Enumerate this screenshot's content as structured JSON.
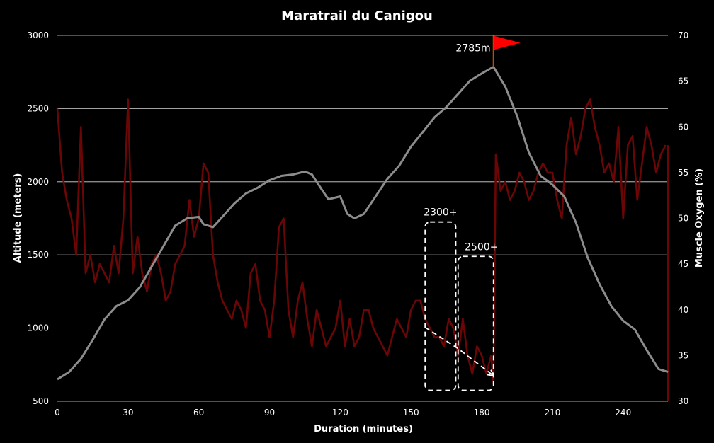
{
  "chart_data": {
    "type": "line",
    "title": "Maratrail du Canigou",
    "xlabel": "Duration (minutes)",
    "ylabel": "Altitude (meters)",
    "y2label": "Muscle Oxygen (%)",
    "xlim": [
      0,
      259
    ],
    "ylim": [
      500,
      3000
    ],
    "y2lim": [
      30,
      70
    ],
    "xticks": [
      0,
      30,
      60,
      90,
      120,
      150,
      180,
      210,
      240
    ],
    "yticks": [
      500,
      1000,
      1500,
      2000,
      2500,
      3000
    ],
    "y2ticks": [
      30,
      35,
      40,
      45,
      50,
      55,
      60,
      65,
      70
    ],
    "grid": "horizontal",
    "colors": {
      "background": "#000000",
      "altitude": "#8c8c8c",
      "oxygen": "#6b0606",
      "flag": "#ff0000",
      "text": "#ffffff"
    },
    "series": [
      {
        "axis": "left",
        "x": [
          0,
          5,
          10,
          15,
          20,
          25,
          30,
          35,
          40,
          45,
          50,
          55,
          60,
          62,
          66,
          70,
          75,
          80,
          85,
          90,
          95,
          100,
          105,
          108,
          112,
          115,
          120,
          123,
          126,
          130,
          135,
          140,
          145,
          150,
          155,
          160,
          165,
          170,
          175,
          180,
          185,
          190,
          195,
          200,
          205,
          210,
          215,
          220,
          225,
          230,
          235,
          240,
          245,
          250,
          255,
          259
        ],
        "y": [
          650,
          700,
          790,
          920,
          1060,
          1150,
          1190,
          1280,
          1420,
          1560,
          1700,
          1750,
          1760,
          1710,
          1690,
          1760,
          1850,
          1920,
          1960,
          2010,
          2040,
          2050,
          2070,
          2050,
          1950,
          1880,
          1900,
          1780,
          1750,
          1780,
          1900,
          2020,
          2110,
          2240,
          2340,
          2440,
          2510,
          2600,
          2690,
          2740,
          2785,
          2650,
          2450,
          2200,
          2040,
          1980,
          1900,
          1720,
          1480,
          1300,
          1150,
          1050,
          990,
          850,
          720,
          700
        ]
      },
      {
        "axis": "right",
        "x": [
          0,
          2,
          4,
          6,
          8,
          10,
          12,
          14,
          16,
          18,
          20,
          22,
          24,
          26,
          28,
          30,
          32,
          34,
          36,
          38,
          40,
          42,
          44,
          46,
          48,
          50,
          52,
          54,
          56,
          58,
          60,
          62,
          64,
          66,
          68,
          70,
          72,
          74,
          76,
          78,
          80,
          82,
          84,
          86,
          88,
          90,
          92,
          94,
          96,
          98,
          100,
          102,
          104,
          106,
          108,
          110,
          112,
          114,
          116,
          118,
          120,
          122,
          124,
          126,
          128,
          130,
          132,
          134,
          136,
          138,
          140,
          142,
          144,
          146,
          148,
          150,
          152,
          154,
          156,
          158,
          160,
          162,
          164,
          166,
          168,
          170,
          172,
          174,
          176,
          178,
          180,
          182,
          184,
          185,
          186,
          188,
          190,
          192,
          194,
          196,
          198,
          200,
          202,
          204,
          206,
          208,
          210,
          212,
          214,
          216,
          218,
          220,
          222,
          224,
          226,
          228,
          230,
          232,
          234,
          236,
          238,
          240,
          242,
          244,
          246,
          248,
          250,
          252,
          254,
          256,
          258
        ],
        "y": [
          62,
          55,
          52,
          50,
          46,
          60,
          44,
          46,
          43,
          45,
          44,
          43,
          47,
          44,
          50,
          63,
          44,
          48,
          44,
          42,
          45,
          46,
          44,
          41,
          42,
          45,
          46,
          47,
          52,
          48,
          50,
          56,
          55,
          46,
          43,
          41,
          40,
          39,
          41,
          40,
          38,
          44,
          45,
          41,
          40,
          37,
          41,
          49,
          50,
          40,
          37,
          41,
          43,
          39,
          36,
          40,
          38,
          36,
          37,
          38,
          41,
          36,
          39,
          36,
          37,
          40,
          40,
          38,
          37,
          36,
          35,
          37,
          39,
          38,
          37,
          40,
          41,
          41,
          39,
          38,
          37,
          37,
          36,
          39,
          38,
          35,
          39,
          35,
          33,
          36,
          35,
          33,
          35,
          32,
          57,
          53,
          54,
          52,
          53,
          55,
          54,
          52,
          53,
          55,
          56,
          55,
          55,
          52,
          50,
          58,
          61,
          57,
          59,
          62,
          63,
          60,
          58,
          55,
          56,
          54,
          60,
          50,
          58,
          59,
          52,
          56,
          60,
          58,
          55,
          57,
          58
        ]
      }
    ],
    "annotations": {
      "peak_label": "2785m",
      "peak_x": 185,
      "peak_y": 2785,
      "box1": {
        "label": "2300+",
        "x0": 156,
        "x1": 169,
        "y0": 575,
        "y1": 1725
      },
      "box2": {
        "label": "2500+",
        "x0": 170,
        "x1": 185,
        "y0": 575,
        "y1": 1490
      },
      "trend": {
        "x": [
          156,
          170,
          185
        ],
        "y": [
          1005,
          860,
          675
        ]
      }
    }
  }
}
